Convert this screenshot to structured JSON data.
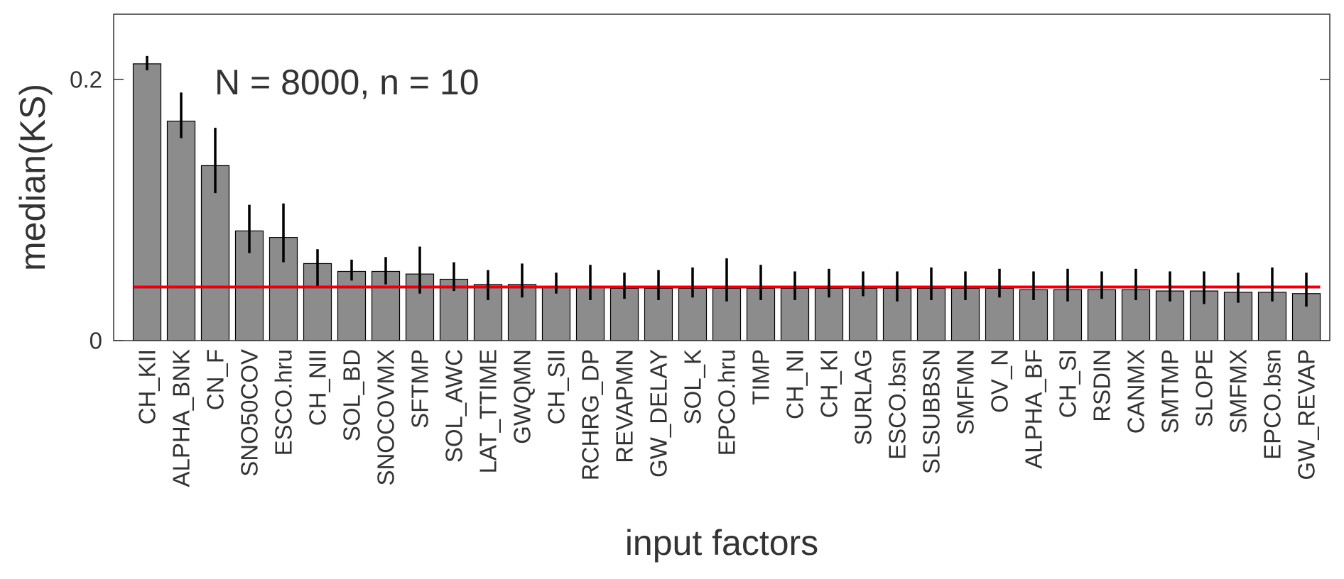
{
  "chart_data": {
    "type": "bar",
    "annotation": "N = 8000, n = 10",
    "xlabel": "input factors",
    "ylabel": "median(KS)",
    "ylim": [
      0,
      0.25
    ],
    "yticks": [
      {
        "value": 0,
        "label": "0"
      },
      {
        "value": 0.2,
        "label": "0.2"
      }
    ],
    "grid": false,
    "threshold": 0.041,
    "colors": {
      "bar_fill": "#8c8c8c",
      "bar_edge": "#000000",
      "error_bar": "#000000",
      "threshold_line": "#e3000f",
      "axis": "#333333",
      "text": "#333333"
    },
    "bars": [
      {
        "label": "CH_KII",
        "value": 0.212,
        "low": 0.207,
        "high": 0.218
      },
      {
        "label": "ALPHA_BNK",
        "value": 0.168,
        "low": 0.155,
        "high": 0.19
      },
      {
        "label": "CN_F",
        "value": 0.134,
        "low": 0.113,
        "high": 0.163
      },
      {
        "label": "SNO50COV",
        "value": 0.084,
        "low": 0.067,
        "high": 0.104
      },
      {
        "label": "ESCO.hru",
        "value": 0.079,
        "low": 0.06,
        "high": 0.105
      },
      {
        "label": "CH_NII",
        "value": 0.059,
        "low": 0.042,
        "high": 0.07
      },
      {
        "label": "SOL_BD",
        "value": 0.053,
        "low": 0.046,
        "high": 0.062
      },
      {
        "label": "SNOCOVMX",
        "value": 0.053,
        "low": 0.043,
        "high": 0.064
      },
      {
        "label": "SFTMP",
        "value": 0.051,
        "low": 0.036,
        "high": 0.072
      },
      {
        "label": "SOL_AWC",
        "value": 0.047,
        "low": 0.038,
        "high": 0.06
      },
      {
        "label": "LAT_TTIME",
        "value": 0.043,
        "low": 0.031,
        "high": 0.054
      },
      {
        "label": "GWQMN",
        "value": 0.043,
        "low": 0.033,
        "high": 0.059
      },
      {
        "label": "CH_SII",
        "value": 0.041,
        "low": 0.036,
        "high": 0.052
      },
      {
        "label": "RCHRG_DP",
        "value": 0.041,
        "low": 0.031,
        "high": 0.058
      },
      {
        "label": "REVAPMN",
        "value": 0.04,
        "low": 0.032,
        "high": 0.052
      },
      {
        "label": "GW_DELAY",
        "value": 0.04,
        "low": 0.031,
        "high": 0.054
      },
      {
        "label": "SOL_K",
        "value": 0.04,
        "low": 0.033,
        "high": 0.056
      },
      {
        "label": "EPCO.hru",
        "value": 0.04,
        "low": 0.03,
        "high": 0.063
      },
      {
        "label": "TIMP",
        "value": 0.04,
        "low": 0.031,
        "high": 0.058
      },
      {
        "label": "CH_NI",
        "value": 0.04,
        "low": 0.031,
        "high": 0.053
      },
      {
        "label": "CH_KI",
        "value": 0.04,
        "low": 0.033,
        "high": 0.055
      },
      {
        "label": "SURLAG",
        "value": 0.04,
        "low": 0.034,
        "high": 0.053
      },
      {
        "label": "ESCO.bsn",
        "value": 0.04,
        "low": 0.03,
        "high": 0.053
      },
      {
        "label": "SLSUBBSN",
        "value": 0.04,
        "low": 0.031,
        "high": 0.056
      },
      {
        "label": "SMFMN",
        "value": 0.04,
        "low": 0.031,
        "high": 0.053
      },
      {
        "label": "OV_N",
        "value": 0.04,
        "low": 0.033,
        "high": 0.055
      },
      {
        "label": "ALPHA_BF",
        "value": 0.039,
        "low": 0.031,
        "high": 0.053
      },
      {
        "label": "CH_SI",
        "value": 0.039,
        "low": 0.03,
        "high": 0.055
      },
      {
        "label": "RSDIN",
        "value": 0.039,
        "low": 0.032,
        "high": 0.053
      },
      {
        "label": "CANMX",
        "value": 0.039,
        "low": 0.031,
        "high": 0.055
      },
      {
        "label": "SMTMP",
        "value": 0.038,
        "low": 0.03,
        "high": 0.053
      },
      {
        "label": "SLOPE",
        "value": 0.038,
        "low": 0.028,
        "high": 0.053
      },
      {
        "label": "SMFMX",
        "value": 0.037,
        "low": 0.029,
        "high": 0.052
      },
      {
        "label": "EPCO.bsn",
        "value": 0.037,
        "low": 0.03,
        "high": 0.056
      },
      {
        "label": "GW_REVAP",
        "value": 0.036,
        "low": 0.026,
        "high": 0.052
      }
    ]
  }
}
